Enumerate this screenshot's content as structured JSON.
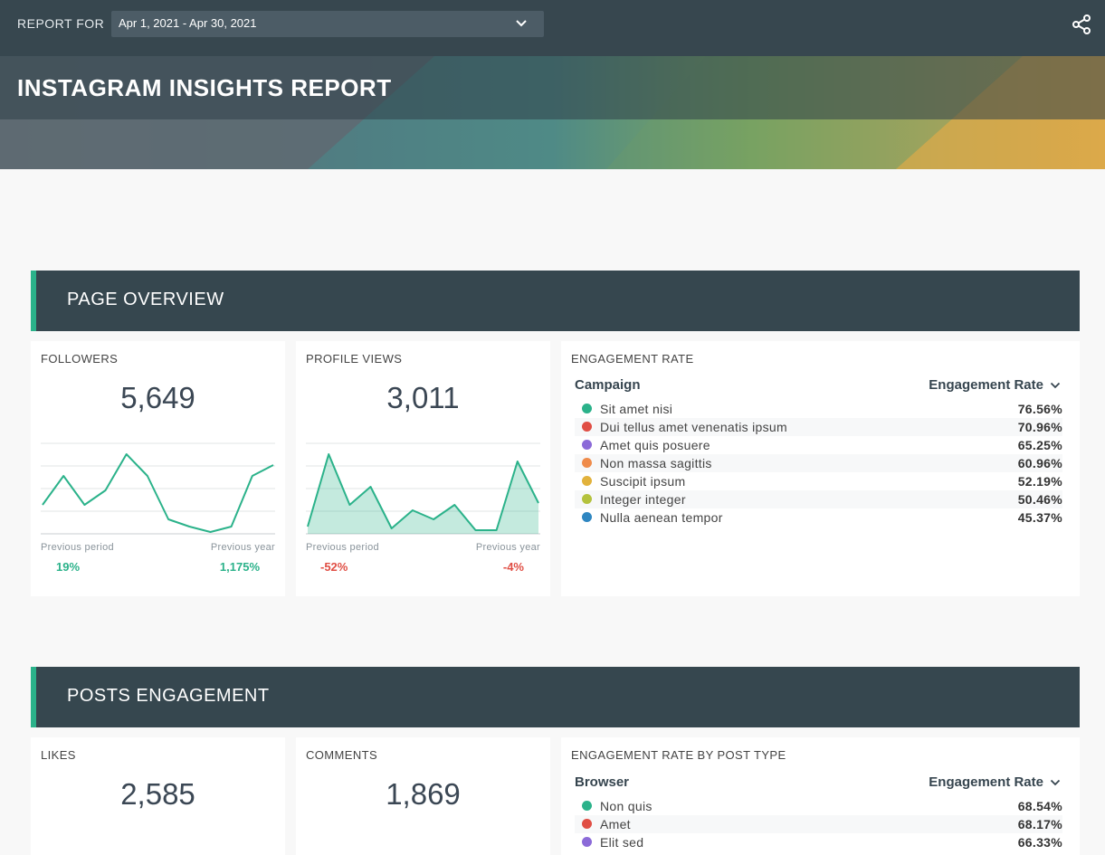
{
  "header": {
    "report_for_label": "REPORT FOR",
    "date_range": "Apr 1, 2021 - Apr 30, 2021",
    "title": "INSTAGRAM INSIGHTS REPORT"
  },
  "colors": {
    "accent": "#2bb28a",
    "negative": "#e04e44",
    "header_bg": "#37474f"
  },
  "page_overview": {
    "title": "PAGE OVERVIEW",
    "followers": {
      "label": "FOLLOWERS",
      "value": "5,649",
      "prev_period_label": "Previous period",
      "prev_year_label": "Previous year",
      "prev_period_change": "19%",
      "prev_year_change": "1,175%",
      "trend": [
        3.2,
        6.4,
        3.2,
        4.8,
        8.8,
        6.4,
        1.6,
        0.8,
        0.2,
        0.8,
        6.4,
        7.6
      ]
    },
    "profile_views": {
      "label": "PROFILE VIEWS",
      "value": "3,011",
      "prev_period_label": "Previous period",
      "prev_year_label": "Previous year",
      "prev_period_change": "-52%",
      "prev_year_change": "-4%",
      "trend": [
        0.8,
        8.8,
        3.2,
        5.2,
        0.6,
        2.6,
        1.6,
        3.2,
        0.4,
        0.4,
        8.0,
        3.4
      ]
    },
    "engagement": {
      "label": "ENGAGEMENT RATE",
      "col1": "Campaign",
      "col2": "Engagement Rate",
      "rows": [
        {
          "name": "Sit amet nisi",
          "value": "76.56%",
          "color": "#2bb28a"
        },
        {
          "name": "Dui tellus amet venenatis ipsum",
          "value": "70.96%",
          "color": "#e04e44"
        },
        {
          "name": "Amet quis posuere",
          "value": "65.25%",
          "color": "#8b6ad8"
        },
        {
          "name": "Non massa sagittis",
          "value": "60.96%",
          "color": "#ef8b4a"
        },
        {
          "name": "Suscipit ipsum",
          "value": "52.19%",
          "color": "#e2b23c"
        },
        {
          "name": "Integer integer",
          "value": "50.46%",
          "color": "#b4c23d"
        },
        {
          "name": "Nulla aenean tempor",
          "value": "45.37%",
          "color": "#2e86c1"
        }
      ]
    }
  },
  "posts_engagement": {
    "title": "POSTS ENGAGEMENT",
    "likes": {
      "label": "LIKES",
      "value": "2,585"
    },
    "comments": {
      "label": "COMMENTS",
      "value": "1,869"
    },
    "by_type": {
      "label": "ENGAGEMENT RATE BY POST TYPE",
      "col1": "Browser",
      "col2": "Engagement Rate",
      "rows": [
        {
          "name": "Non quis",
          "value": "68.54%",
          "color": "#2bb28a"
        },
        {
          "name": "Amet",
          "value": "68.17%",
          "color": "#e04e44"
        },
        {
          "name": "Elit sed",
          "value": "66.33%",
          "color": "#8b6ad8"
        }
      ]
    }
  }
}
